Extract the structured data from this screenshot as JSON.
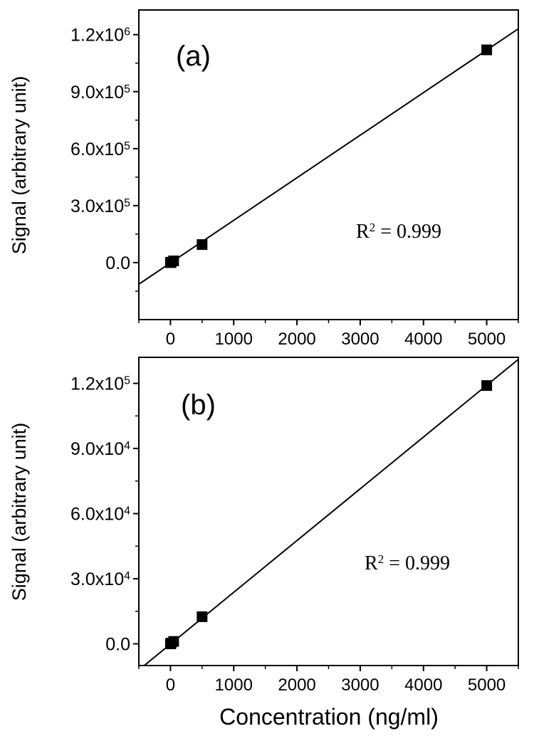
{
  "chart_data": [
    {
      "type": "scatter",
      "panel_label": "(a)",
      "ylabel": "Signal (arbitrary unit)",
      "xlabel": "",
      "xlim": [
        -500,
        5500
      ],
      "ylim": [
        -300000,
        1330000
      ],
      "x_ticks": [
        0,
        1000,
        2000,
        3000,
        4000,
        5000
      ],
      "x_tick_labels": [
        "0",
        "1000",
        "2000",
        "3000",
        "4000",
        "5000"
      ],
      "y_ticks": [
        0,
        300000,
        600000,
        900000,
        1200000
      ],
      "y_tick_labels": [
        {
          "base": "0.0",
          "exp": ""
        },
        {
          "base": "3.0x10",
          "exp": "5"
        },
        {
          "base": "6.0x10",
          "exp": "5"
        },
        {
          "base": "9.0x10",
          "exp": "5"
        },
        {
          "base": "1.2x10",
          "exp": "6"
        }
      ],
      "points": [
        {
          "x": 0,
          "y": 0
        },
        {
          "x": 10,
          "y": 2000
        },
        {
          "x": 50,
          "y": 9000
        },
        {
          "x": 500,
          "y": 95000
        },
        {
          "x": 5000,
          "y": 1120000
        }
      ],
      "fit": {
        "slope": 224.1,
        "intercept": -1500
      },
      "annotation": {
        "base": "R",
        "exp": "2",
        "text": " = 0.999"
      },
      "grid": false,
      "legend": "none"
    },
    {
      "type": "scatter",
      "panel_label": "(b)",
      "ylabel": "Signal (arbitrary unit)",
      "xlabel": "Concentration (ng/ml)",
      "xlim": [
        -500,
        5500
      ],
      "ylim": [
        -10000,
        132000
      ],
      "x_ticks": [
        0,
        1000,
        2000,
        3000,
        4000,
        5000
      ],
      "x_tick_labels": [
        "0",
        "1000",
        "2000",
        "3000",
        "4000",
        "5000"
      ],
      "y_ticks": [
        0,
        30000,
        60000,
        90000,
        120000
      ],
      "y_tick_labels": [
        {
          "base": "0.0",
          "exp": ""
        },
        {
          "base": "3.0x10",
          "exp": "4"
        },
        {
          "base": "6.0x10",
          "exp": "4"
        },
        {
          "base": "9.0x10",
          "exp": "4"
        },
        {
          "base": "1.2x10",
          "exp": "5"
        }
      ],
      "points": [
        {
          "x": 0,
          "y": 0
        },
        {
          "x": 10,
          "y": 300
        },
        {
          "x": 50,
          "y": 1100
        },
        {
          "x": 500,
          "y": 12500
        },
        {
          "x": 5000,
          "y": 119000
        }
      ],
      "fit": {
        "slope": 23.85,
        "intercept": -120
      },
      "annotation": {
        "base": "R",
        "exp": "2",
        "text": " = 0.999"
      },
      "grid": false,
      "legend": "none"
    }
  ]
}
